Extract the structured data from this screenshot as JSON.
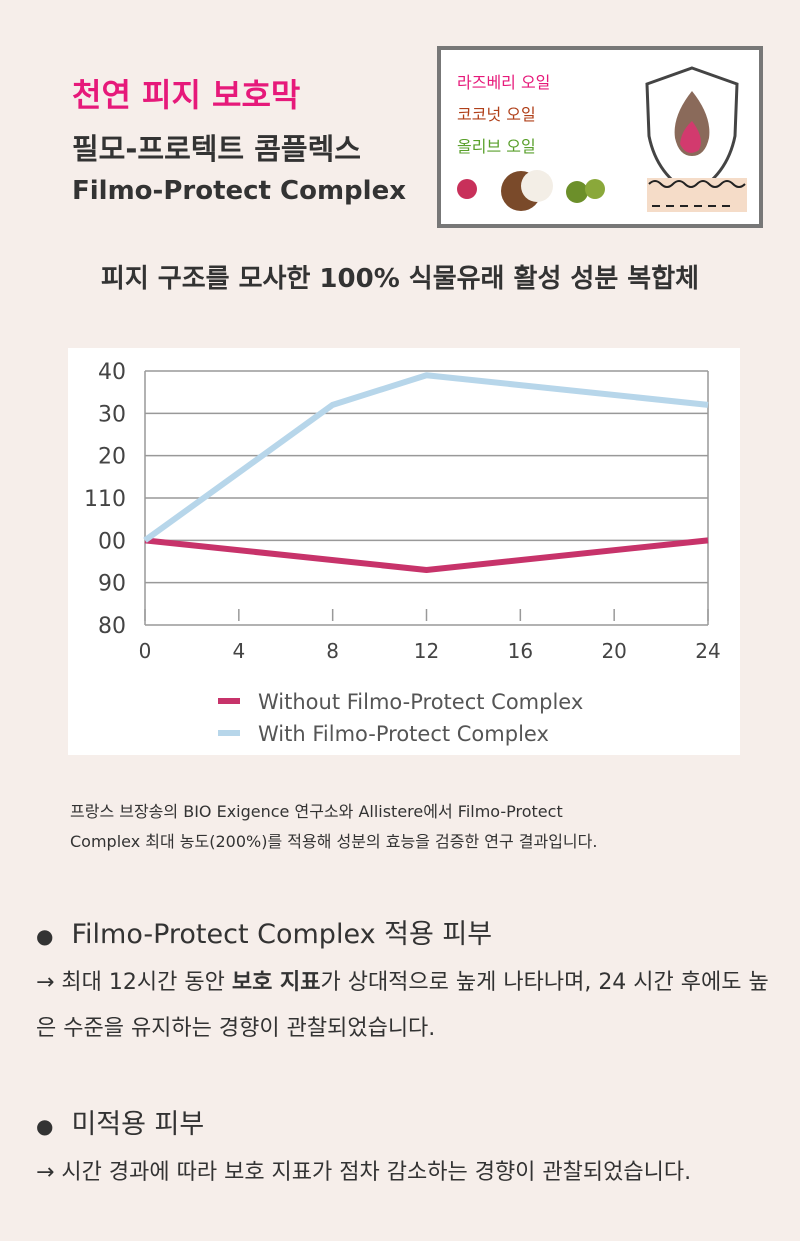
{
  "header": {
    "title": "천연 피지 보호막",
    "name_ko": "필모-프로텍트 콤플렉스",
    "name_en": "Filmo-Protect Complex"
  },
  "ingredients": [
    "라즈베리 오일",
    "코코넛 오일",
    "올리브 오일"
  ],
  "subtitle": "피지 구조를 모사한 100% 식물유래 활성 성분 복합체",
  "chart_data": {
    "type": "line",
    "x_series": [
      [
        0,
        12,
        24
      ],
      [
        0,
        8,
        12,
        24
      ]
    ],
    "series": [
      {
        "name": "Without Filmo-Protect Complex",
        "color": "#c7336a",
        "x": [
          0,
          12,
          24
        ],
        "values": [
          100,
          93,
          100
        ]
      },
      {
        "name": "With Filmo-Protect Complex",
        "color": "#b7d6ea",
        "x": [
          0,
          8,
          12,
          24
        ],
        "values": [
          100,
          132,
          139,
          132
        ]
      }
    ],
    "xlim": [
      0,
      24
    ],
    "xticks": [
      0,
      4,
      8,
      12,
      16,
      20,
      24
    ],
    "ylim": [
      80,
      140
    ],
    "yticks": [
      {
        "value": 140,
        "label": "40"
      },
      {
        "value": 130,
        "label": "30"
      },
      {
        "value": 120,
        "label": "20"
      },
      110,
      {
        "value": 100,
        "label": "00"
      },
      90,
      80
    ],
    "grid": true,
    "legend": "bottom"
  },
  "caption": [
    "프랑스 브장송의 BIO Exigence 연구소와 Allistere에서 Filmo-Protect",
    "Complex 최대 농도(200%)를 적용해 성분의 효능을 검증한 연구 결과입니다."
  ],
  "bullets": [
    {
      "title": "Filmo-Protect Complex 적용 피부",
      "text": [
        "→ 최대 12시간 동안 ",
        "보호 지표",
        "가 상대적으로 높게 나타나며, 24 시간 후에도 높은 수준을 유지하는 경향이 관찰되었습니다."
      ]
    },
    {
      "title": "미적용 피부",
      "text": [
        "→ 시간 경과에 따라 보호 지표가 점차 감소하는 경향이 관찰되었습니다."
      ]
    }
  ]
}
